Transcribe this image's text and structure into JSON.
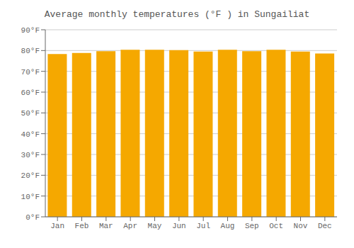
{
  "chart_data": {
    "type": "bar",
    "title": "Average monthly temperatures (°F ) in Sungailiat",
    "categories": [
      "Jan",
      "Feb",
      "Mar",
      "Apr",
      "May",
      "Jun",
      "Jul",
      "Aug",
      "Sep",
      "Oct",
      "Nov",
      "Dec"
    ],
    "values": [
      78.3,
      78.8,
      79.7,
      80.4,
      80.4,
      80.2,
      79.5,
      80.4,
      79.7,
      80.4,
      79.5,
      78.6
    ],
    "color": "#F5A800",
    "ylim": [
      0,
      90
    ],
    "yticks": [
      {
        "value": 0,
        "label": "0°F"
      },
      {
        "value": 10,
        "label": "10°F"
      },
      {
        "value": 20,
        "label": "20°F"
      },
      {
        "value": 30,
        "label": "30°F"
      },
      {
        "value": 40,
        "label": "40°F"
      },
      {
        "value": 50,
        "label": "50°F"
      },
      {
        "value": 60,
        "label": "60°F"
      },
      {
        "value": 70,
        "label": "70°F"
      },
      {
        "value": 80,
        "label": "80°F"
      },
      {
        "value": 90,
        "label": "90°F"
      }
    ],
    "grid": true
  }
}
